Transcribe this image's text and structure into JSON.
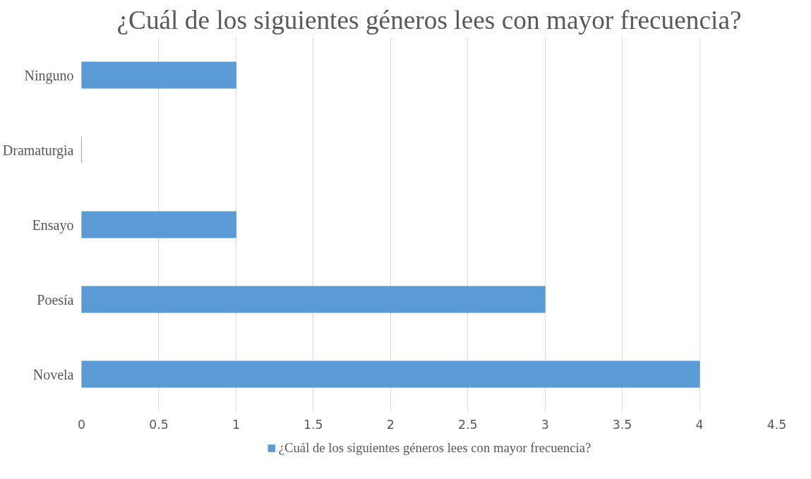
{
  "chart_data": {
    "type": "bar",
    "orientation": "horizontal",
    "title": "¿Cuál de los siguientes géneros lees con mayor frecuencia?",
    "categories": [
      "Ninguno",
      "Dramaturgia",
      "Ensayo",
      "Poesía",
      "Novela"
    ],
    "series": [
      {
        "name": "¿Cuál de los siguientes géneros lees con mayor frecuencia?",
        "color": "#5b9bd5",
        "values": [
          1,
          0,
          1,
          3,
          4
        ]
      }
    ],
    "xlim": [
      0,
      4.5
    ],
    "xticks": [
      0,
      0.5,
      1,
      1.5,
      2,
      2.5,
      3,
      3.5,
      4,
      4.5
    ],
    "grid": "x",
    "legend": "bottom"
  }
}
